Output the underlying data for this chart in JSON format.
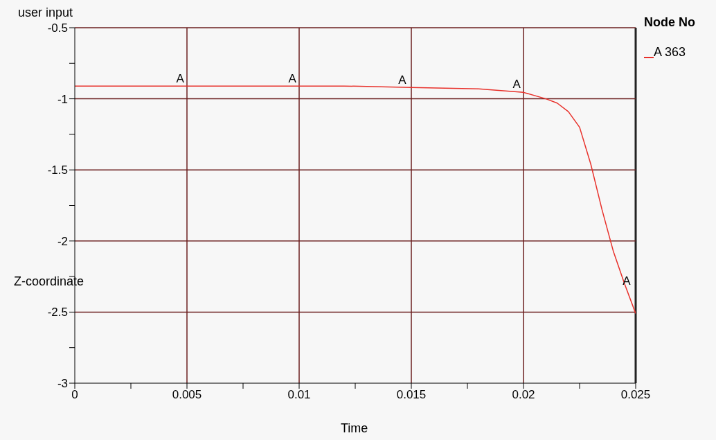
{
  "chart_data": {
    "type": "line",
    "title": "user input",
    "xlabel": "Time",
    "ylabel": "Z-coordinate",
    "legend_title": "Node No",
    "x": [
      0,
      0.003,
      0.006,
      0.009,
      0.012,
      0.015,
      0.018,
      0.02,
      0.021,
      0.0215,
      0.022,
      0.0225,
      0.023,
      0.0235,
      0.024,
      0.0245,
      0.025
    ],
    "series": [
      {
        "name": "A 363",
        "color": "#e8302a",
        "values": [
          -0.91,
          -0.91,
          -0.91,
          -0.91,
          -0.91,
          -0.92,
          -0.93,
          -0.955,
          -1.0,
          -1.03,
          -1.09,
          -1.2,
          -1.46,
          -1.78,
          -2.07,
          -2.3,
          -2.51
        ]
      }
    ],
    "xlim": [
      0,
      0.025
    ],
    "xticks": [
      0,
      {
        "value": 0.0025,
        "label": null
      },
      0.005,
      {
        "value": 0.0075,
        "label": null
      },
      0.01,
      {
        "value": 0.0125,
        "label": null
      },
      0.015,
      {
        "value": 0.0175,
        "label": null
      },
      0.02,
      {
        "value": 0.0225,
        "label": null
      },
      0.025
    ],
    "ylim": [
      -3,
      -0.5
    ],
    "yticks": [
      -3,
      {
        "value": -2.75,
        "label": null
      },
      -2.5,
      {
        "value": -2.25,
        "label": null
      },
      -2,
      {
        "value": -1.75,
        "label": null
      },
      -1.5,
      {
        "value": -1.25,
        "label": null
      },
      -1,
      {
        "value": -0.75,
        "label": null
      },
      -0.5
    ],
    "grid": true,
    "legend": "top right",
    "marker": "none",
    "line_style": "solid",
    "annotations": [
      {
        "text": "A",
        "x": 0.0047,
        "y": -0.91
      },
      {
        "text": "A",
        "x": 0.0097,
        "y": -0.91
      },
      {
        "text": "A",
        "x": 0.0146,
        "y": -0.92
      },
      {
        "text": "A",
        "x": 0.0197,
        "y": -0.95
      },
      {
        "text": "A",
        "x": 0.0246,
        "y": -2.33
      }
    ]
  }
}
